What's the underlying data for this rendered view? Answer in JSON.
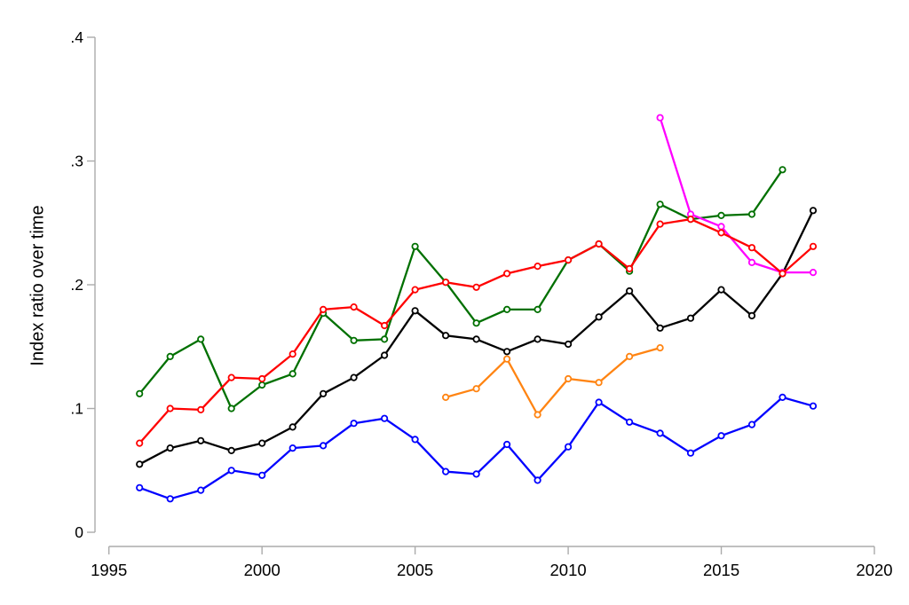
{
  "chart_data": {
    "type": "line",
    "title": "",
    "xlabel": "",
    "ylabel": "Index ratio over time",
    "x_ticks": [
      1995,
      2000,
      2005,
      2010,
      2015,
      2020
    ],
    "x_tick_labels": [
      "1995",
      "2000",
      "2005",
      "2010",
      "2015",
      "2020"
    ],
    "y_ticks": [
      0,
      0.1,
      0.2,
      0.3,
      0.4
    ],
    "y_tick_labels": [
      "0",
      ".1",
      ".2",
      ".3",
      ".4"
    ],
    "xlim": [
      1995,
      2020
    ],
    "ylim": [
      0,
      0.4
    ],
    "grid": false,
    "legend": "none",
    "axis_color": "#ababab",
    "text_color": "#000000",
    "marker": "hollow-circle",
    "series": [
      {
        "name": "series-green",
        "color": "#007000",
        "x": [
          1996,
          1997,
          1998,
          1999,
          2000,
          2001,
          2002,
          2003,
          2004,
          2005,
          2006,
          2007,
          2008,
          2009,
          2010,
          2011,
          2012,
          2013,
          2014,
          2015,
          2016,
          2017
        ],
        "y": [
          0.112,
          0.142,
          0.156,
          0.1,
          0.119,
          0.128,
          0.177,
          0.155,
          0.156,
          0.231,
          0.202,
          0.169,
          0.18,
          0.18,
          0.22,
          0.233,
          0.211,
          0.265,
          0.253,
          0.256,
          0.257,
          0.293
        ]
      },
      {
        "name": "series-black",
        "color": "#000000",
        "x": [
          1996,
          1997,
          1998,
          1999,
          2000,
          2001,
          2002,
          2003,
          2004,
          2005,
          2006,
          2007,
          2008,
          2009,
          2010,
          2011,
          2012,
          2013,
          2014,
          2015,
          2016,
          2017,
          2018
        ],
        "y": [
          0.055,
          0.068,
          0.074,
          0.066,
          0.072,
          0.085,
          0.112,
          0.125,
          0.143,
          0.179,
          0.159,
          0.156,
          0.146,
          0.156,
          0.152,
          0.174,
          0.195,
          0.165,
          0.173,
          0.196,
          0.175,
          0.209,
          0.26
        ]
      },
      {
        "name": "series-blue",
        "color": "#0000ff",
        "x": [
          1996,
          1997,
          1998,
          1999,
          2000,
          2001,
          2002,
          2003,
          2004,
          2005,
          2006,
          2007,
          2008,
          2009,
          2010,
          2011,
          2012,
          2013,
          2014,
          2015,
          2016,
          2017,
          2018
        ],
        "y": [
          0.036,
          0.027,
          0.034,
          0.05,
          0.046,
          0.068,
          0.07,
          0.088,
          0.092,
          0.075,
          0.049,
          0.047,
          0.071,
          0.042,
          0.069,
          0.105,
          0.089,
          0.08,
          0.064,
          0.078,
          0.087,
          0.109,
          0.102
        ]
      },
      {
        "name": "series-orange",
        "color": "#ff8412",
        "x": [
          2006,
          2007,
          2008,
          2009,
          2010,
          2011,
          2012,
          2013
        ],
        "y": [
          0.109,
          0.116,
          0.14,
          0.095,
          0.124,
          0.121,
          0.142,
          0.149
        ]
      },
      {
        "name": "series-magenta",
        "color": "#ff00ff",
        "x": [
          2013,
          2014,
          2015,
          2016,
          2017,
          2018
        ],
        "y": [
          0.335,
          0.257,
          0.247,
          0.218,
          0.21,
          0.21
        ]
      },
      {
        "name": "series-red",
        "color": "#ff0000",
        "x": [
          1996,
          1997,
          1998,
          1999,
          2000,
          2001,
          2002,
          2003,
          2004,
          2005,
          2006,
          2007,
          2008,
          2009,
          2010,
          2011,
          2012,
          2013,
          2014,
          2015,
          2016,
          2017,
          2018
        ],
        "y": [
          0.072,
          0.1,
          0.099,
          0.125,
          0.124,
          0.144,
          0.18,
          0.182,
          0.167,
          0.196,
          0.202,
          0.198,
          0.209,
          0.215,
          0.22,
          0.233,
          0.213,
          0.249,
          0.253,
          0.242,
          0.23,
          0.209,
          0.231
        ]
      }
    ]
  }
}
